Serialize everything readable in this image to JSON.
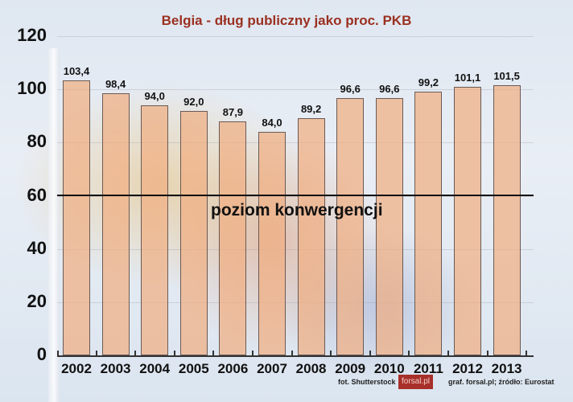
{
  "chart_data": {
    "type": "bar",
    "title": "Belgia - dług publiczny jako proc. PKB",
    "xlabel": "",
    "ylabel": "",
    "ylim": [
      0,
      120
    ],
    "yticks": [
      "0",
      "20",
      "40",
      "60",
      "80",
      "100",
      "120"
    ],
    "grid": true,
    "categories": [
      "2002",
      "2003",
      "2004",
      "2005",
      "2006",
      "2007",
      "2008",
      "2009",
      "2010",
      "2011",
      "2012",
      "2013"
    ],
    "values": [
      103.4,
      98.4,
      94.0,
      92.0,
      87.9,
      84.0,
      89.2,
      96.6,
      96.6,
      99.2,
      101.1,
      101.5
    ],
    "value_labels": [
      "103,4",
      "98,4",
      "94,0",
      "92,0",
      "87,9",
      "84,0",
      "89,2",
      "96,6",
      "96,6",
      "99,2",
      "101,1",
      "101,5"
    ],
    "annotations": [
      {
        "type": "hline",
        "y": 60,
        "label": "poziom konwergencji"
      }
    ],
    "bar_color": "#f0af82",
    "title_color": "#9b3020"
  },
  "footer": {
    "photo_credit": "fot. Shutterstock",
    "logo": "forsal.pl",
    "source": "graf. forsal.pl;  źródło: Eurostat"
  }
}
